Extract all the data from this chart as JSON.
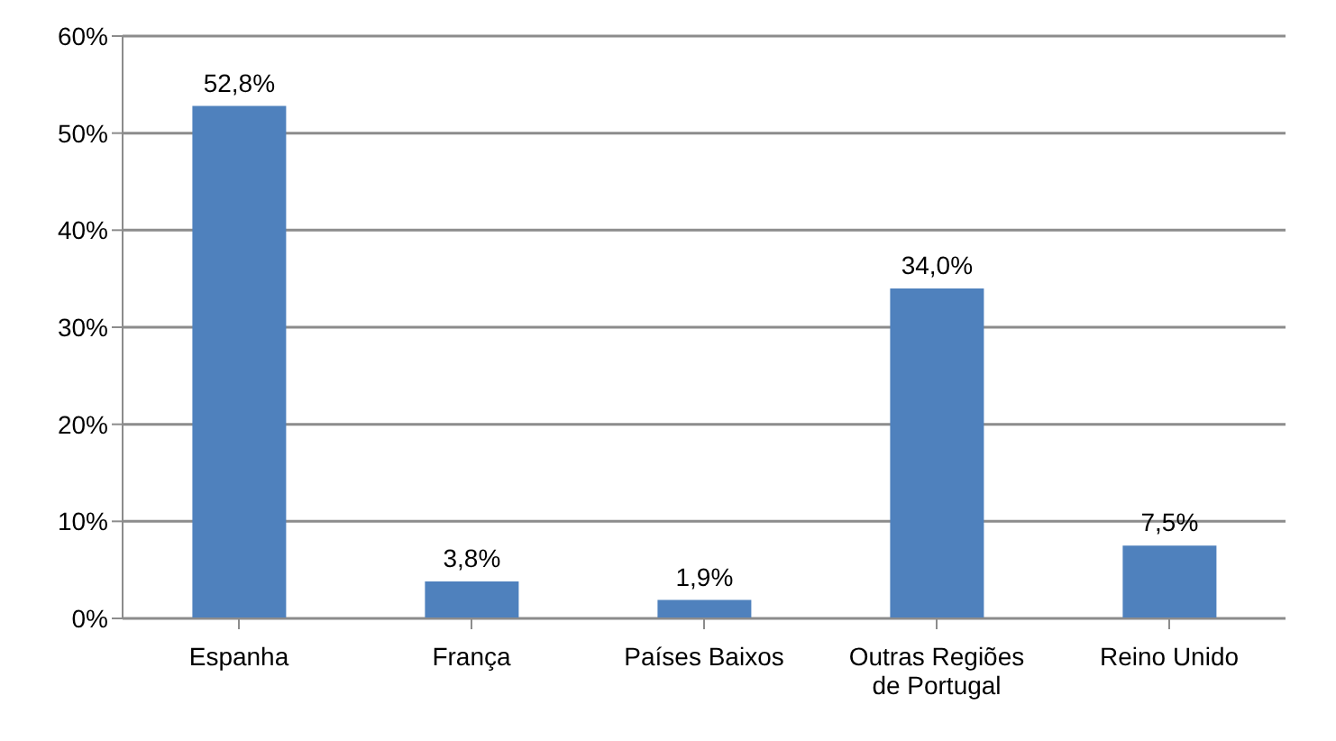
{
  "chart_data": {
    "type": "bar",
    "categories": [
      "Espanha",
      "França",
      "Países Baixos",
      "Outras Regiões de Portugal",
      "Reino Unido"
    ],
    "values": [
      52.8,
      3.8,
      1.9,
      34.0,
      7.5
    ],
    "value_labels": [
      "52,8%",
      "3,8%",
      "1,9%",
      "34,0%",
      "7,5%"
    ],
    "color": "#4f81bd",
    "ylim": [
      0,
      60
    ],
    "yticks": [
      {
        "value": 0,
        "label": "0%"
      },
      {
        "value": 10,
        "label": "10%"
      },
      {
        "value": 20,
        "label": "20%"
      },
      {
        "value": 30,
        "label": "30%"
      },
      {
        "value": 40,
        "label": "40%"
      },
      {
        "value": 50,
        "label": "50%"
      },
      {
        "value": 60,
        "label": "60%"
      }
    ],
    "grid": "y"
  }
}
